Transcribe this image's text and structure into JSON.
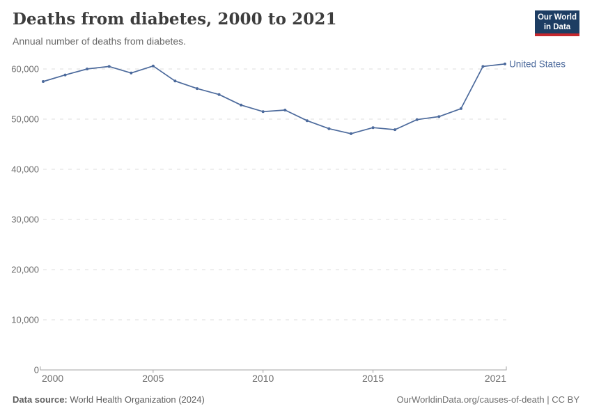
{
  "header": {
    "title": "Deaths from diabetes, 2000 to 2021",
    "subtitle": "Annual number of deaths from diabetes."
  },
  "logo": {
    "line1": "Our World",
    "line2": "in Data",
    "bg_color": "#1d3d63",
    "accent_color": "#c5272d"
  },
  "chart_data": {
    "type": "line",
    "title": "Deaths from diabetes, 2000 to 2021",
    "subtitle": "Annual number of deaths from diabetes.",
    "xlabel": "",
    "ylabel": "",
    "x": [
      2000,
      2001,
      2002,
      2003,
      2004,
      2005,
      2006,
      2007,
      2008,
      2009,
      2010,
      2011,
      2012,
      2013,
      2014,
      2015,
      2016,
      2017,
      2018,
      2019,
      2020,
      2021
    ],
    "series": [
      {
        "name": "United States",
        "color": "#4c6a9c",
        "values": [
          57500,
          58800,
          60000,
          60500,
          59200,
          60600,
          57600,
          56100,
          54900,
          52800,
          51500,
          51800,
          49700,
          48100,
          47100,
          48300,
          47900,
          49900,
          50500,
          52100,
          60500,
          61000
        ]
      }
    ],
    "xticks": [
      "2000",
      "2005",
      "2010",
      "2015",
      "2021"
    ],
    "xtick_years": [
      2000,
      2005,
      2010,
      2015,
      2021
    ],
    "yticks": [
      0,
      10000,
      20000,
      30000,
      40000,
      50000,
      60000
    ],
    "ytick_labels": [
      "0",
      "10,000",
      "20,000",
      "30,000",
      "40,000",
      "50,000",
      "60,000"
    ],
    "ylim": [
      0,
      62000
    ],
    "xlim": [
      2000,
      2021
    ],
    "grid": true,
    "legend_position": "end-of-line",
    "grid_color": "#dedede",
    "axis_color": "#a3a3a3",
    "tick_label_color": "#6e6e6e"
  },
  "footer": {
    "source_label": "Data source:",
    "source_text": " World Health Organization (2024)",
    "right_text": "OurWorldinData.org/causes-of-death | CC BY"
  }
}
